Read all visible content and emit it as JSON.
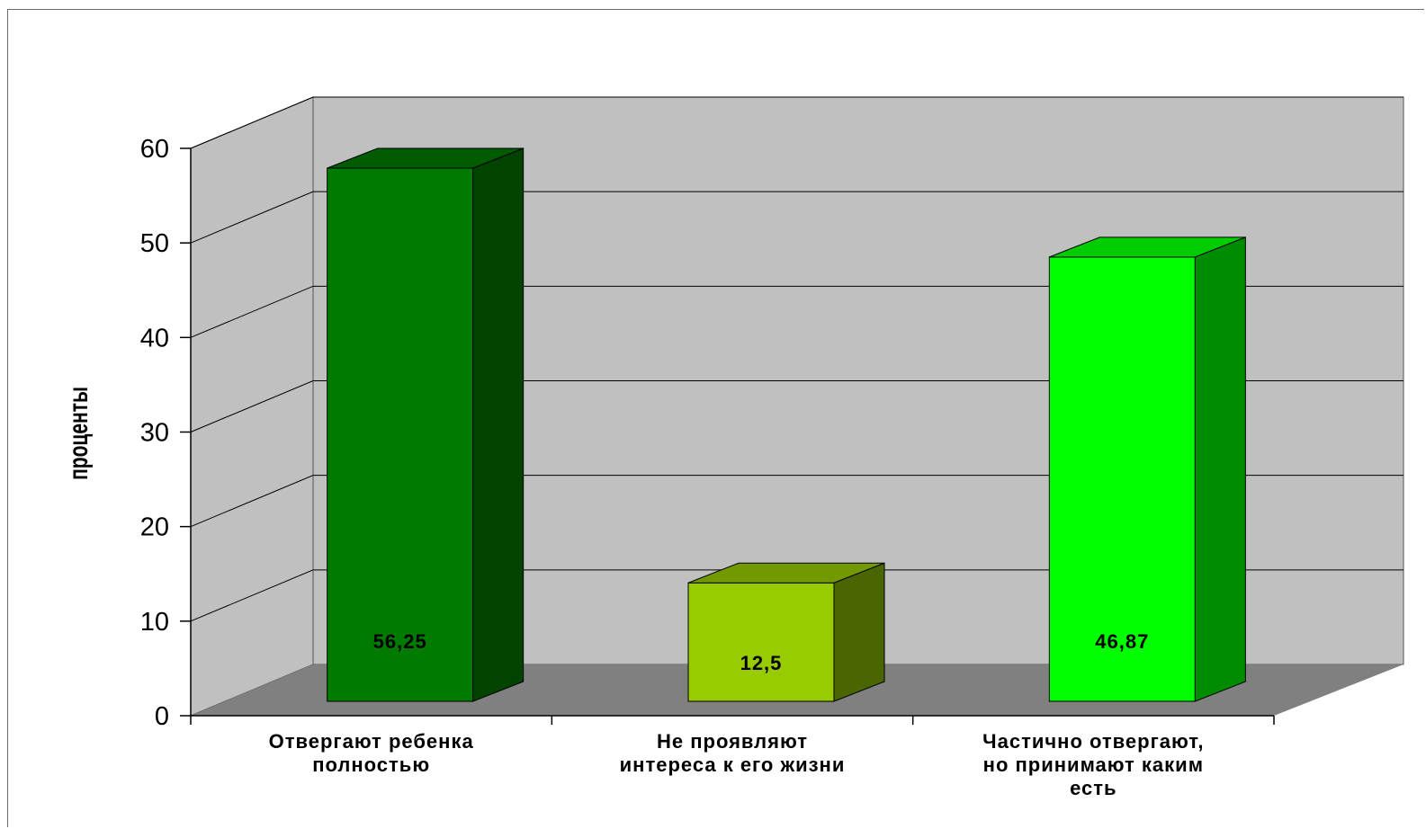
{
  "chart_data": {
    "type": "bar",
    "title": "",
    "xlabel": "",
    "ylabel": "проценты",
    "ylim": [
      0,
      60
    ],
    "yticks": [
      0,
      10,
      20,
      30,
      40,
      50,
      60
    ],
    "grid": true,
    "categories": [
      [
        "Отвергают ребенка",
        "полностью"
      ],
      [
        "Не проявляют",
        "интереса к его жизни"
      ],
      [
        "Частично отвергают,",
        "но принимают каким",
        "есть"
      ]
    ],
    "values": [
      56.25,
      12.5,
      46.87
    ],
    "data_labels": [
      "56,25",
      "12,5",
      "46,87"
    ],
    "colors": [
      {
        "front": "#007a00",
        "side": "#004400",
        "top": "#005c00"
      },
      {
        "front": "#99cc00",
        "side": "#4a6600",
        "top": "#739900"
      },
      {
        "front": "#00ff00",
        "side": "#008c00",
        "top": "#00cc00"
      }
    ],
    "wall_color": "#c0c0c0",
    "floor_color": "#808080"
  }
}
